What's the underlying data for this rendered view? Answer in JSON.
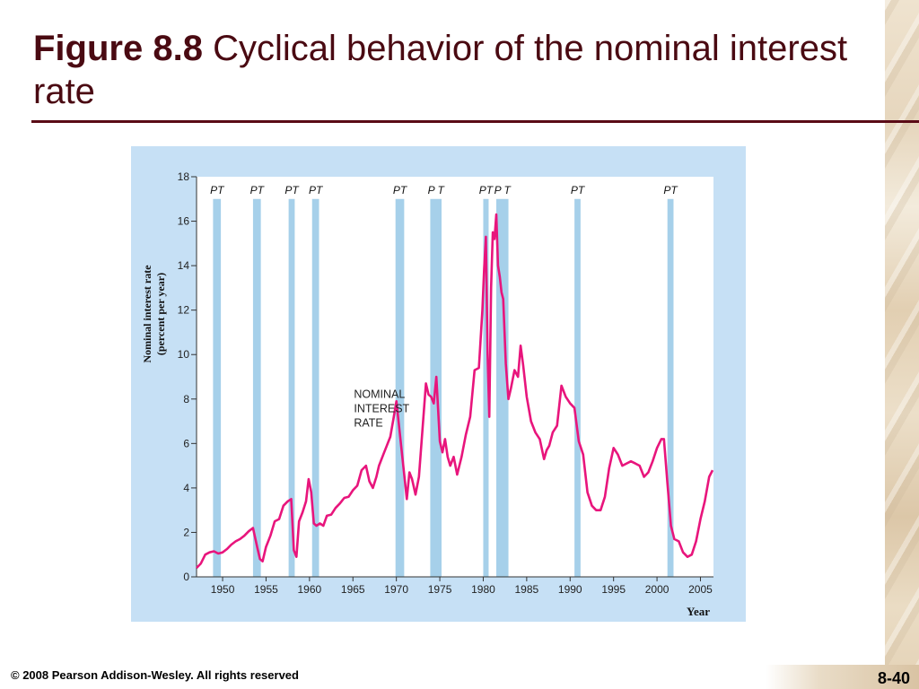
{
  "slide": {
    "title_figure": "Figure 8.8",
    "title_rest": " Cyclical behavior of the nominal interest rate",
    "footer": "© 2008 Pearson Addison-Wesley. All rights reserved",
    "page_number": "8-40"
  },
  "colors": {
    "title": "#4a0a12",
    "rule": "#5a0b16",
    "panel": "#c6e0f5",
    "plot_bg": "#ffffff",
    "recession_band": "#a6d0ea",
    "series_line": "#e8157c"
  },
  "chart_data": {
    "type": "line",
    "title": "",
    "xlabel": "Year",
    "ylabel": "Nominal interest rate (percent per year)",
    "ylabel_lines": [
      "Nominal interest rate",
      "(percent per year)"
    ],
    "xlim": [
      1947,
      2006.5
    ],
    "ylim": [
      0,
      18
    ],
    "x_ticks": [
      1950,
      1955,
      1960,
      1965,
      1970,
      1975,
      1980,
      1985,
      1990,
      1995,
      2000,
      2005
    ],
    "y_ticks": [
      0,
      2,
      4,
      6,
      8,
      10,
      12,
      14,
      16,
      18
    ],
    "grid": false,
    "series_label": [
      "NOMINAL",
      "INTEREST",
      "RATE"
    ],
    "recessions": [
      {
        "peak": 1948.9,
        "trough": 1949.8,
        "label": "PT"
      },
      {
        "peak": 1953.5,
        "trough": 1954.4,
        "label": "PT"
      },
      {
        "peak": 1957.6,
        "trough": 1958.3,
        "label": "PT"
      },
      {
        "peak": 1960.3,
        "trough": 1961.1,
        "label": "PT"
      },
      {
        "peak": 1969.9,
        "trough": 1970.9,
        "label": "PT"
      },
      {
        "peak": 1973.9,
        "trough": 1975.2,
        "label": "P T"
      },
      {
        "peak": 1980.0,
        "trough": 1980.6,
        "label": "PT"
      },
      {
        "peak": 1981.5,
        "trough": 1982.9,
        "label": "P T"
      },
      {
        "peak": 1990.5,
        "trough": 1991.2,
        "label": "PT"
      },
      {
        "peak": 2001.2,
        "trough": 2001.9,
        "label": "PT"
      }
    ],
    "series": [
      {
        "x": [
          1947.0,
          1947.5,
          1948.0,
          1948.5,
          1949.0,
          1949.5,
          1950.0,
          1950.5,
          1951.0,
          1951.5,
          1952.0,
          1952.5,
          1953.0,
          1953.5,
          1954.0,
          1954.3,
          1954.6,
          1955.0,
          1955.5,
          1956.0,
          1956.5,
          1957.0,
          1957.5,
          1957.9,
          1958.2,
          1958.5,
          1958.8,
          1959.2,
          1959.6,
          1959.9,
          1960.2,
          1960.5,
          1960.8,
          1961.2,
          1961.6,
          1962.0,
          1962.5,
          1963.0,
          1963.5,
          1964.0,
          1964.5,
          1965.0,
          1965.5,
          1966.0,
          1966.5,
          1966.9,
          1967.3,
          1967.7,
          1968.0,
          1968.5,
          1968.9,
          1969.3,
          1969.7,
          1970.0,
          1970.3,
          1970.6,
          1970.9,
          1971.2,
          1971.5,
          1971.8,
          1972.2,
          1972.6,
          1973.0,
          1973.4,
          1973.7,
          1974.0,
          1974.3,
          1974.6,
          1975.0,
          1975.3,
          1975.6,
          1975.9,
          1976.2,
          1976.6,
          1977.0,
          1977.5,
          1978.0,
          1978.5,
          1979.0,
          1979.5,
          1979.9,
          1980.1,
          1980.3,
          1980.5,
          1980.7,
          1980.9,
          1981.1,
          1981.3,
          1981.5,
          1981.7,
          1981.9,
          1982.1,
          1982.3,
          1982.6,
          1982.9,
          1983.2,
          1983.6,
          1984.0,
          1984.3,
          1984.6,
          1985.0,
          1985.5,
          1986.0,
          1986.5,
          1987.0,
          1987.3,
          1987.6,
          1988.0,
          1988.5,
          1989.0,
          1989.5,
          1990.0,
          1990.5,
          1991.0,
          1991.5,
          1992.0,
          1992.5,
          1993.0,
          1993.5,
          1994.0,
          1994.5,
          1995.0,
          1995.5,
          1996.0,
          1996.5,
          1997.0,
          1997.5,
          1998.0,
          1998.5,
          1999.0,
          1999.5,
          2000.0,
          2000.5,
          2000.8,
          2001.2,
          2001.6,
          2002.0,
          2002.5,
          2003.0,
          2003.5,
          2004.0,
          2004.5,
          2005.0,
          2005.5,
          2006.0,
          2006.4
        ],
        "values": [
          0.4,
          0.6,
          1.0,
          1.1,
          1.15,
          1.05,
          1.1,
          1.25,
          1.45,
          1.6,
          1.7,
          1.85,
          2.05,
          2.2,
          1.3,
          0.8,
          0.7,
          1.35,
          1.85,
          2.5,
          2.6,
          3.2,
          3.4,
          3.5,
          1.2,
          0.9,
          2.5,
          2.9,
          3.4,
          4.4,
          3.8,
          2.4,
          2.3,
          2.4,
          2.3,
          2.75,
          2.8,
          3.1,
          3.3,
          3.55,
          3.6,
          3.9,
          4.1,
          4.8,
          5.0,
          4.3,
          4.0,
          4.5,
          5.0,
          5.5,
          5.9,
          6.3,
          7.2,
          7.9,
          6.8,
          5.7,
          4.6,
          3.5,
          4.7,
          4.4,
          3.7,
          4.5,
          6.6,
          8.7,
          8.2,
          8.1,
          7.8,
          9.0,
          6.1,
          5.6,
          6.2,
          5.4,
          5.0,
          5.4,
          4.6,
          5.4,
          6.4,
          7.2,
          9.3,
          9.4,
          12.0,
          13.8,
          15.3,
          10.0,
          7.2,
          13.0,
          15.5,
          15.2,
          16.3,
          14.0,
          13.5,
          12.8,
          12.5,
          9.6,
          8.0,
          8.5,
          9.3,
          9.0,
          10.4,
          9.5,
          8.1,
          7.0,
          6.5,
          6.2,
          5.3,
          5.7,
          5.9,
          6.5,
          6.8,
          8.6,
          8.1,
          7.8,
          7.6,
          6.1,
          5.5,
          3.8,
          3.2,
          3.0,
          3.0,
          3.6,
          4.9,
          5.8,
          5.5,
          5.0,
          5.1,
          5.2,
          5.1,
          5.0,
          4.5,
          4.7,
          5.2,
          5.8,
          6.2,
          6.2,
          4.2,
          2.3,
          1.7,
          1.6,
          1.1,
          0.9,
          1.0,
          1.6,
          2.6,
          3.4,
          4.5,
          4.8
        ]
      }
    ]
  }
}
